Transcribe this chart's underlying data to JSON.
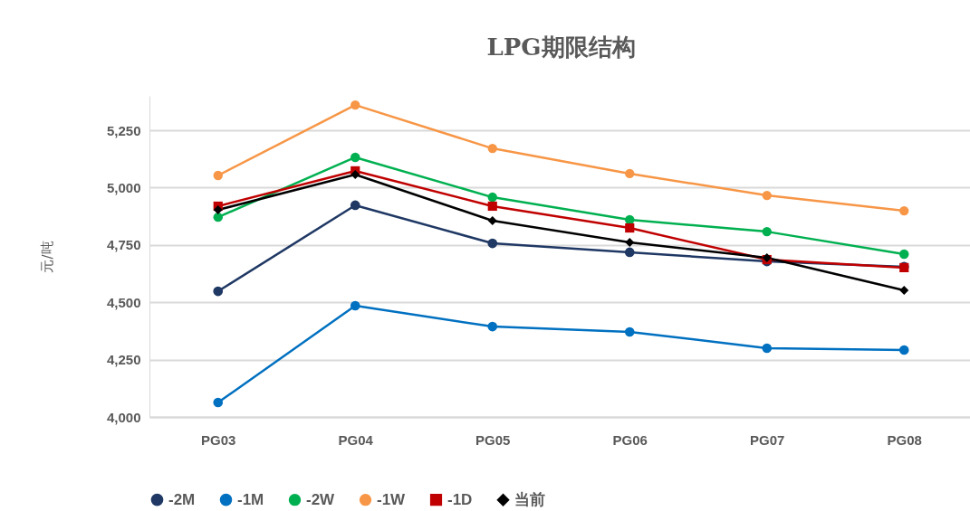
{
  "chart_data": {
    "type": "line",
    "title": "LPG期限结构",
    "ylabel": "元/吨",
    "categories": [
      "PG03",
      "PG04",
      "PG05",
      "PG06",
      "PG07",
      "PG08"
    ],
    "series": [
      {
        "name": "-2M",
        "color": "#1f3864",
        "marker": "circle",
        "values": [
          4548,
          4923,
          4757,
          4718,
          4678,
          4655
        ]
      },
      {
        "name": "-1M",
        "color": "#0070c0",
        "marker": "circle",
        "values": [
          4063,
          4485,
          4394,
          4371,
          4300,
          4292
        ]
      },
      {
        "name": "-2W",
        "color": "#00b050",
        "marker": "circle",
        "values": [
          4871,
          5132,
          4958,
          4860,
          4808,
          4710
        ]
      },
      {
        "name": "-1W",
        "color": "#f79646",
        "marker": "circle",
        "values": [
          5053,
          5360,
          5171,
          5061,
          4966,
          4899
        ]
      },
      {
        "name": "-1D",
        "color": "#c00000",
        "marker": "square",
        "values": [
          4919,
          5073,
          4919,
          4824,
          4686,
          4651
        ]
      },
      {
        "name": "当前",
        "color": "#000000",
        "marker": "diamond",
        "values": [
          4903,
          5057,
          4856,
          4761,
          4694,
          4552
        ]
      }
    ],
    "ylim": [
      4000,
      5400
    ],
    "yticks": [
      {
        "value": 4000,
        "label": "4,000"
      },
      {
        "value": 4250,
        "label": "4,250"
      },
      {
        "value": 4500,
        "label": "4,500"
      },
      {
        "value": 4750,
        "label": "4,750"
      },
      {
        "value": 5000,
        "label": "5,000"
      },
      {
        "value": 5250,
        "label": "5,250"
      }
    ],
    "grid": "y",
    "legend": "bottom"
  }
}
